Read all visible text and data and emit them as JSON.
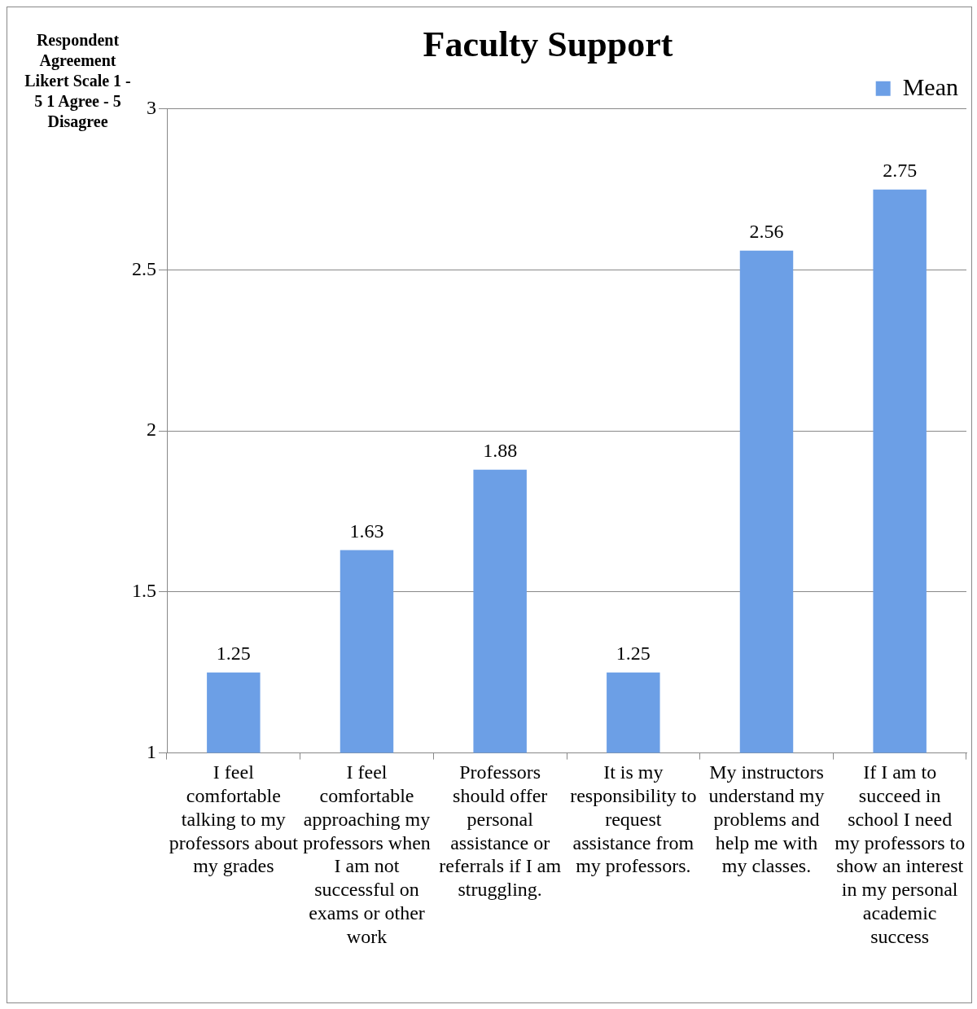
{
  "chart_data": {
    "type": "bar",
    "title": "Faculty Support",
    "ylabel": "Respondent Agreement Likert Scale 1 - 5 1 Agree - 5 Disagree",
    "categories": [
      "I feel comfortable talking to my professors about my grades",
      "I feel comfortable approaching my professors when I am not successful on exams or other work",
      "Professors should offer personal assistance or referrals if I am struggling.",
      "It is my responsibility to request assistance from my professors.",
      "My instructors understand my problems and help me with my classes.",
      "If I am to succeed in school I need my professors to show an interest in my personal academic success"
    ],
    "series": [
      {
        "name": "Mean",
        "color": "#6c9fe6",
        "values": [
          1.25,
          1.63,
          1.88,
          1.25,
          2.56,
          2.75
        ]
      }
    ],
    "ylim": [
      1,
      3
    ],
    "yticks": [
      1,
      1.5,
      2,
      2.5,
      3
    ],
    "grid": "y",
    "legend": "top right",
    "data_labels": true
  }
}
